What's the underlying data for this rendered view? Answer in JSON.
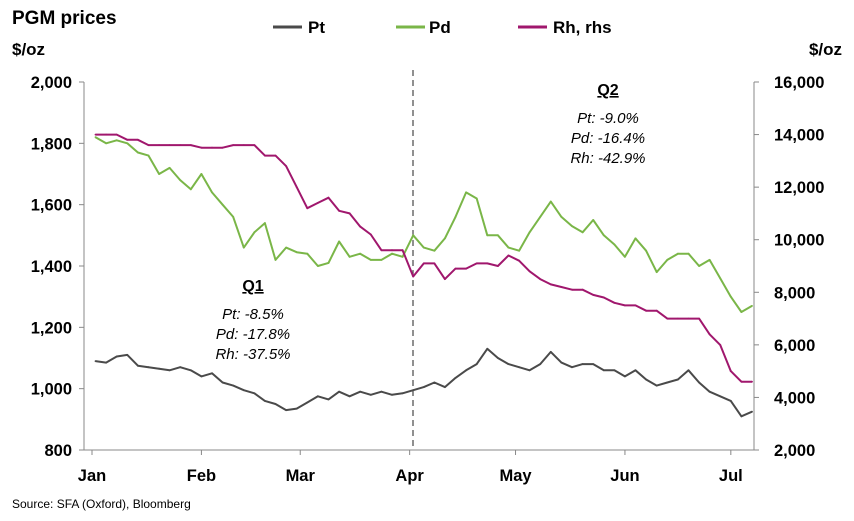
{
  "chart_data": {
    "type": "line",
    "title": "PGM prices",
    "ylabel_left": "$/oz",
    "ylabel_right": "$/oz",
    "ylim_left": [
      800,
      2000
    ],
    "ylim_right": [
      2000,
      16000
    ],
    "yticks_left": [
      "800",
      "1,000",
      "1,200",
      "1,400",
      "1,600",
      "1,800",
      "2,000"
    ],
    "yticks_right": [
      "2,000",
      "4,000",
      "6,000",
      "8,000",
      "10,000",
      "12,000",
      "14,000",
      "16,000"
    ],
    "xticks": [
      "Jan",
      "Feb",
      "Mar",
      "Apr",
      "May",
      "Jun",
      "Jul"
    ],
    "grid": false,
    "legend_position": "top",
    "x_dates": [
      "2013-01-02",
      "2013-01-05",
      "2013-01-08",
      "2013-01-11",
      "2013-01-14",
      "2013-01-17",
      "2013-01-20",
      "2013-01-23",
      "2013-01-26",
      "2013-01-29",
      "2013-02-01",
      "2013-02-04",
      "2013-02-07",
      "2013-02-10",
      "2013-02-13",
      "2013-02-16",
      "2013-02-19",
      "2013-02-22",
      "2013-02-25",
      "2013-02-28",
      "2013-03-03",
      "2013-03-06",
      "2013-03-09",
      "2013-03-12",
      "2013-03-15",
      "2013-03-18",
      "2013-03-21",
      "2013-03-24",
      "2013-03-27",
      "2013-03-30",
      "2013-04-02",
      "2013-04-05",
      "2013-04-08",
      "2013-04-11",
      "2013-04-14",
      "2013-04-17",
      "2013-04-20",
      "2013-04-23",
      "2013-04-26",
      "2013-04-29",
      "2013-05-02",
      "2013-05-05",
      "2013-05-08",
      "2013-05-11",
      "2013-05-14",
      "2013-05-17",
      "2013-05-20",
      "2013-05-23",
      "2013-05-26",
      "2013-05-29",
      "2013-06-01",
      "2013-06-04",
      "2013-06-07",
      "2013-06-10",
      "2013-06-13",
      "2013-06-16",
      "2013-06-19",
      "2013-06-22",
      "2013-06-25",
      "2013-06-28",
      "2013-07-01",
      "2013-07-04",
      "2013-07-07"
    ],
    "series": [
      {
        "name": "Pt",
        "axis": "left",
        "color": "#4a4a4a",
        "values": [
          1090,
          1085,
          1105,
          1110,
          1075,
          1070,
          1065,
          1060,
          1070,
          1060,
          1040,
          1050,
          1020,
          1010,
          995,
          985,
          960,
          950,
          930,
          935,
          955,
          975,
          965,
          990,
          975,
          990,
          980,
          990,
          980,
          985,
          995,
          1005,
          1020,
          1005,
          1035,
          1060,
          1080,
          1130,
          1100,
          1080,
          1070,
          1060,
          1080,
          1120,
          1085,
          1070,
          1080,
          1080,
          1060,
          1060,
          1040,
          1060,
          1030,
          1010,
          1020,
          1030,
          1060,
          1020,
          990,
          975,
          960,
          910,
          925
        ]
      },
      {
        "name": "Pd",
        "axis": "left",
        "color": "#7ab648",
        "values": [
          1820,
          1800,
          1810,
          1800,
          1770,
          1760,
          1700,
          1720,
          1680,
          1650,
          1700,
          1640,
          1600,
          1560,
          1460,
          1510,
          1540,
          1420,
          1460,
          1445,
          1440,
          1400,
          1410,
          1480,
          1430,
          1440,
          1420,
          1420,
          1440,
          1430,
          1500,
          1460,
          1450,
          1490,
          1560,
          1640,
          1620,
          1500,
          1500,
          1460,
          1450,
          1510,
          1560,
          1610,
          1560,
          1530,
          1510,
          1550,
          1500,
          1470,
          1430,
          1490,
          1450,
          1380,
          1420,
          1440,
          1440,
          1400,
          1420,
          1360,
          1300,
          1250,
          1270
        ]
      },
      {
        "name": "Rh, rhs",
        "axis": "right",
        "color": "#a0176d",
        "values": [
          14000,
          14000,
          14000,
          13800,
          13800,
          13600,
          13600,
          13600,
          13600,
          13600,
          13500,
          13500,
          13500,
          13600,
          13600,
          13600,
          13200,
          13200,
          12800,
          12000,
          11200,
          11400,
          11600,
          11100,
          11000,
          10500,
          10200,
          9600,
          9600,
          9600,
          8600,
          9100,
          9100,
          8500,
          8900,
          8900,
          9100,
          9100,
          9000,
          9400,
          9200,
          8800,
          8500,
          8300,
          8200,
          8100,
          8100,
          7900,
          7800,
          7600,
          7500,
          7500,
          7300,
          7300,
          7000,
          7000,
          7000,
          7000,
          6400,
          6000,
          5000,
          4600,
          4600
        ]
      }
    ],
    "annotations": [
      {
        "heading": "Q1",
        "lines": [
          "Pt: -8.5%",
          "Pd: -17.8%",
          "Rh: -37.5%"
        ]
      },
      {
        "heading": "Q2",
        "lines": [
          "Pt: -9.0%",
          "Pd: -16.4%",
          "Rh: -42.9%"
        ]
      }
    ],
    "source": "Source: SFA (Oxford), Bloomberg"
  }
}
